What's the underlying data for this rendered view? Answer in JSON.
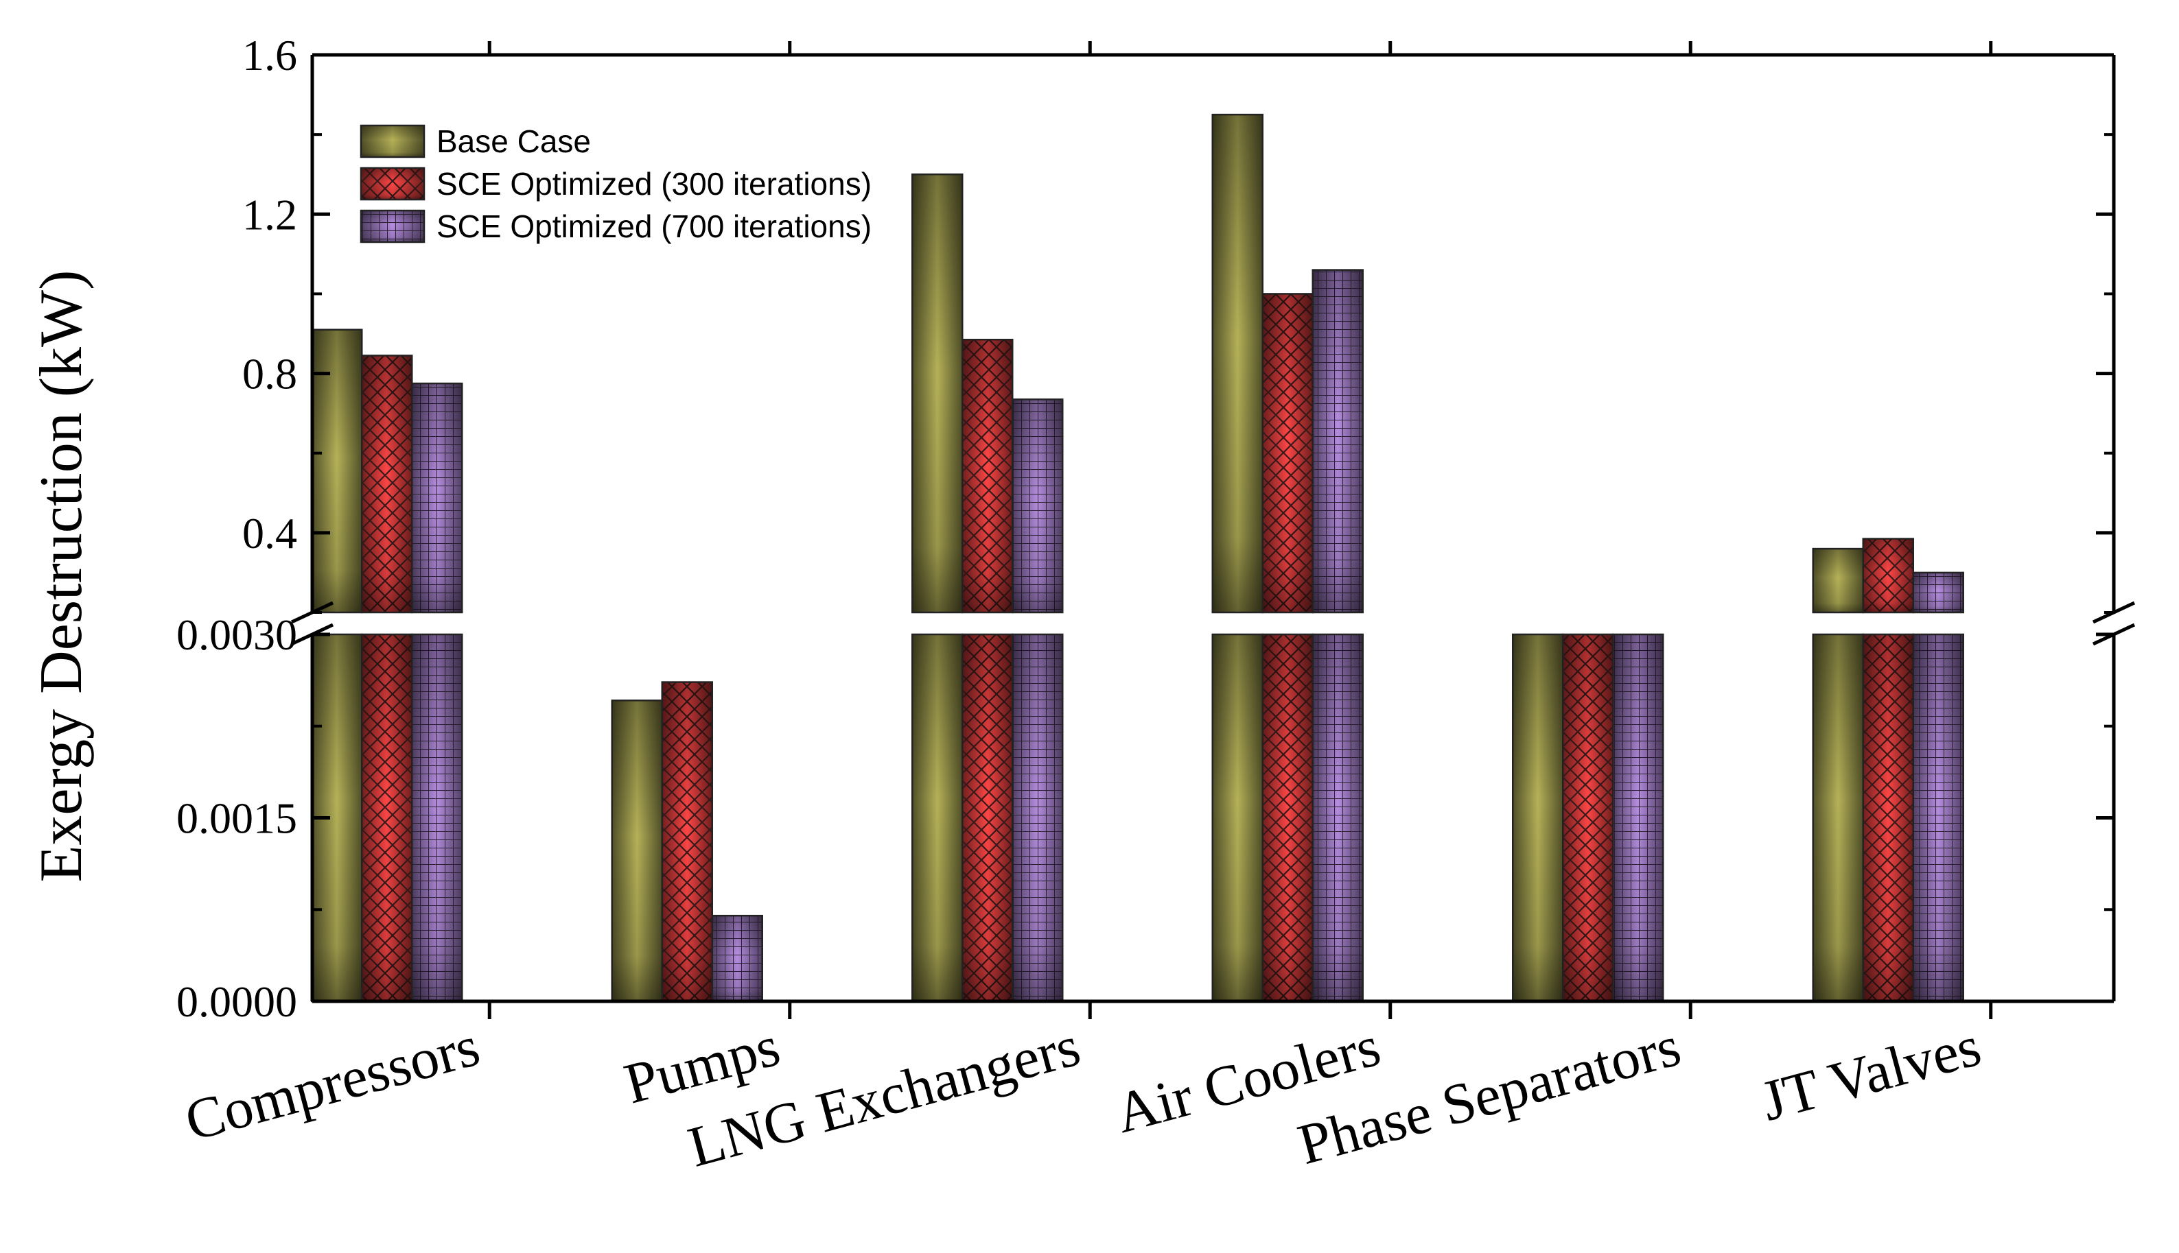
{
  "chart_data": {
    "type": "bar",
    "title": "",
    "ylabel": "Exergy Destruction (kW)",
    "xlabel": "",
    "categories": [
      "Compressors",
      "Pumps",
      "LNG Exchangers",
      "Air Coolers",
      "Phase Separators",
      "JT Valves"
    ],
    "series": [
      {
        "name": "Base Case",
        "values": [
          0.91,
          0.00246,
          1.3,
          1.45,
          0.065,
          0.36
        ],
        "color": "#b5b158",
        "pattern": "gradient"
      },
      {
        "name": "SCE Optimized (300 iterations)",
        "values": [
          0.845,
          0.00261,
          0.885,
          1.0,
          0.05,
          0.385
        ],
        "color": "#ff4646",
        "pattern": "crosshatch"
      },
      {
        "name": "SCE Optimized (700 iterations)",
        "values": [
          0.775,
          0.0007,
          0.735,
          1.06,
          0.03,
          0.3
        ],
        "color": "#b68ee0",
        "pattern": "grid"
      }
    ],
    "axis_break": {
      "lower_range": [
        0.0,
        0.003
      ],
      "upper_range": [
        0.2,
        1.6
      ],
      "lower_ticks": [
        "0.0000",
        "0.0015",
        "0.0030"
      ],
      "upper_ticks": [
        "0.4",
        "0.8",
        "1.2",
        "1.6"
      ]
    },
    "legend_position": "top-left",
    "grid": false
  }
}
